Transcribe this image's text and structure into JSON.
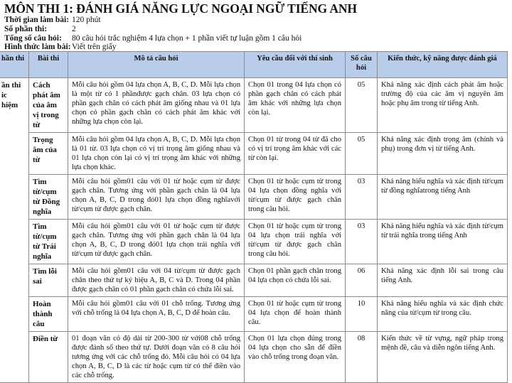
{
  "title": "MÔN THI 1: ĐÁNH GIÁ NĂNG LỰC NGOẠI NGỮ TIẾNG ANH",
  "meta": [
    {
      "label": "Thời gian làm bài:",
      "value": "120 phút"
    },
    {
      "label": "Số phần thi:",
      "value": "2"
    },
    {
      "label": "Tổng số câu hỏi:",
      "value": "80 câu hỏi trắc nghiệm 4 lựa chọn + 1 phần viết tự luận gồm 1 câu hỏi"
    },
    {
      "label": "Hình thức làm bài:",
      "value": "Viết trên giấy"
    }
  ],
  "table": {
    "headers": [
      "hần thi",
      "Bài thi",
      "Mô tả câu hỏi",
      "Yêu cầu đối với thí sinh",
      "Số câu hỏi",
      "Kiến thức, kỹ năng được đánh giá"
    ],
    "section": "ần thi\nic\nhiệm",
    "rows": [
      {
        "bai_thi": "Cách phát âm của âm vị trong từ",
        "mo_ta": "Mỗi câu hỏi gồm 04 lựa chọn A, B, C, D. Mỗi lựa chọn là một từ có 1 phầnđược gạch chân. 03 lựa chọn có phần gạch chân có cách phát âm giống nhau và 01 lựa chọn có phần gạch chân có cách phát âm khác với những lựa chọn còn lại.",
        "yeu_cau": "Chọn 01 trong 04 lựa chọn có phần gạch chân có cách phát âm khác với những lựa chọn còn lại.",
        "so_cau": "05",
        "kien_thuc": "Khả năng xác định cách phát âm hoặc trường độ của các âm vị nguyên âm hoặc phụ âm trong từ tiếng Anh."
      },
      {
        "bai_thi": "Trọng âm của từ",
        "mo_ta": "Mỗi câu hỏi gồm 04 lựa chọn A, B, C, D. Mỗi lựa chọn là 01 từ.  03 lựa chọn có vị trí trọng âm giống nhau và 01 lựa chọn còn lại có vị trí trọng âm khác với những lựa chọn khác.",
        "yeu_cau": "Chọn 01 từ trong 04 từ đã cho có vị trí trọng âm khác với các từ còn lại.",
        "so_cau": "05",
        "kien_thuc": "Khả năng xác định trọng âm (chính và phụ) trong đơn vị từ tiếng Anh."
      },
      {
        "bai_thi": "Tìm từ/cụm từ Đồng nghĩa",
        "mo_ta": "Mỗi câu hỏi gồm01 câu với 01 từ hoặc cụm từ được gạch chân. Tương ứng với phần gạch chân là 04 lựa chọn A, B, C, D trong đó01 lựa chọn đồng nghĩavới từ/cụm từ được gạch chân.",
        "yeu_cau": "Chọn 01 từ hoặc cụm từ trong 04 lựa chọn đồng nghĩa với từ/cụm từ được gạch chân trong câu hỏi.",
        "so_cau": "03",
        "kien_thuc": "Khả năng hiểu nghĩa và xác định từ/cụm từ đồng nghĩatrong tiếng Anh"
      },
      {
        "bai_thi": "Tìm từ/cụm từ Trái nghĩa",
        "mo_ta": "Mỗi câu hỏi gồm01 câu với 01 từ hoặc cụm từ được gạch chân. Tương ứng với phần gạch chân là 04 lựa chọn A, B, C, D trong đó01 lựa chọn trái nghĩa với từ/cụm từ được gạch chân.",
        "yeu_cau": "Chọn 01 từ hoặc cụm từ trong 04 lựa chọn trái nghĩa với từ/cụm từ được gạch chân trong câu hỏi.",
        "so_cau": "03",
        "kien_thuc": "Khả năng hiểu nghĩa và xác định từ/cụm từ trái nghĩa trong tiếng Anh"
      },
      {
        "bai_thi": "Tìm lỗi sai",
        "mo_ta": "Mỗi câu hỏi gồm01 câu với 04 từ/cụm từ được gạch chân theo thứ tự ký hiệu A, B, C và D. Trong 04 phần được gạch chân có 01 phần gạch chân có chứa lỗi sai.",
        "yeu_cau": "Chọn 01 phần gạch chân trong 04 lựa chọn có chứa lỗi sai.",
        "so_cau": "06",
        "kien_thuc": "Khả năng xác định lỗi sai trong câu tiếng Anh."
      },
      {
        "bai_thi": "Hoàn thành câu",
        "mo_ta": "Mỗi câu hỏi gồm01 câu với 01 chỗ trống. Tương ứng với chỗ trống là 04 lựa chọn A, B, C, D để hoàn câu.",
        "yeu_cau": "Chọn 01 từ hoặc cụm từ trong 04 lựa chọn để hoàn thành câu.",
        "so_cau": "10",
        "kien_thuc": "Khả năng hiểu nghĩa và xác định chức năng của từ/cụm từ trong câu."
      },
      {
        "bai_thi": "Điền từ",
        "mo_ta": "01 đoạn văn có độ dài từ 200-300 từ với08 chỗ trống được đánh số theo thứ tự. Dưới đoạn văn có 8 câu hỏi tương ứng với các chỗ trống đó. Mỗi câu hỏi có 04 lựa chọn A, B, C, D là các từ hoặc cụm từ có thể điền vào các chỗ trống.",
        "yeu_cau": "Chọn 01 lựa chọn đúng trong 04 lựa chọn cho sẵn để điền vào chỗ trống trong đoạn văn.",
        "so_cau": "08",
        "kien_thuc": "Kiến thức về từ vựng, ngữ pháp trong mệnh đề, câu và diễn ngôn tiếng Anh."
      }
    ]
  }
}
